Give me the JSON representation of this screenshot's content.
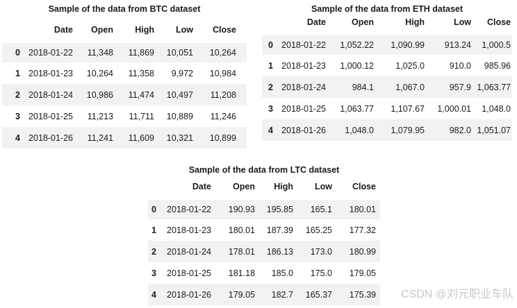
{
  "watermark": {
    "text": "CSDN @刘元职业车队",
    "color": "#c8c8c8"
  },
  "colors": {
    "stripe": "#f2f2f2",
    "header_border": "#1c1c1c",
    "text": "#1a1a1a",
    "background": "#ffffff"
  },
  "chart_data": [
    {
      "type": "table",
      "title": "Sample of the data from BTC dataset",
      "columns": [
        "Date",
        "Open",
        "High",
        "Low",
        "Close"
      ],
      "index": [
        "0",
        "1",
        "2",
        "3",
        "4"
      ],
      "rows": [
        [
          "2018-01-22",
          "11,348",
          "11,869",
          "10,051",
          "10,264"
        ],
        [
          "2018-01-23",
          "10,264",
          "11,358",
          "9,972",
          "10,984"
        ],
        [
          "2018-01-24",
          "10,986",
          "11,474",
          "10,497",
          "11,208"
        ],
        [
          "2018-01-25",
          "11,213",
          "11,711",
          "10,889",
          "11,246"
        ],
        [
          "2018-01-26",
          "11,241",
          "11,609",
          "10,321",
          "10,899"
        ]
      ],
      "layout_hints": {
        "striped_rows": "even",
        "grid": false,
        "position": "top-left"
      }
    },
    {
      "type": "table",
      "title": "Sample of the data from ETH dataset",
      "columns": [
        "Date",
        "Open",
        "High",
        "Low",
        "Close"
      ],
      "index": [
        "0",
        "1",
        "2",
        "3",
        "4"
      ],
      "rows": [
        [
          "2018-01-22",
          "1,052.22",
          "1,090.99",
          "913.24",
          "1,000.5"
        ],
        [
          "2018-01-23",
          "1,000.12",
          "1,025.0",
          "910.0",
          "985.96"
        ],
        [
          "2018-01-24",
          "984.1",
          "1,067.0",
          "957.9",
          "1,063.77"
        ],
        [
          "2018-01-25",
          "1,063.77",
          "1,107.67",
          "1,000.01",
          "1,048.0"
        ],
        [
          "2018-01-26",
          "1,048.0",
          "1,079.95",
          "982.0",
          "1,051.07"
        ]
      ],
      "layout_hints": {
        "striped_rows": "even",
        "grid": false,
        "position": "top-right"
      }
    },
    {
      "type": "table",
      "title": "Sample of the data from LTC dataset",
      "columns": [
        "Date",
        "Open",
        "High",
        "Low",
        "Close"
      ],
      "index": [
        "0",
        "1",
        "2",
        "3",
        "4"
      ],
      "rows": [
        [
          "2018-01-22",
          "190.93",
          "195.85",
          "165.1",
          "180.01"
        ],
        [
          "2018-01-23",
          "180.01",
          "187.39",
          "165.25",
          "177.32"
        ],
        [
          "2018-01-24",
          "178.01",
          "186.13",
          "173.0",
          "180.99"
        ],
        [
          "2018-01-25",
          "181.18",
          "185.0",
          "175.0",
          "179.05"
        ],
        [
          "2018-01-26",
          "179.05",
          "182.7",
          "165.37",
          "175.39"
        ]
      ],
      "layout_hints": {
        "striped_rows": "even",
        "grid": false,
        "position": "bottom-center"
      }
    }
  ]
}
